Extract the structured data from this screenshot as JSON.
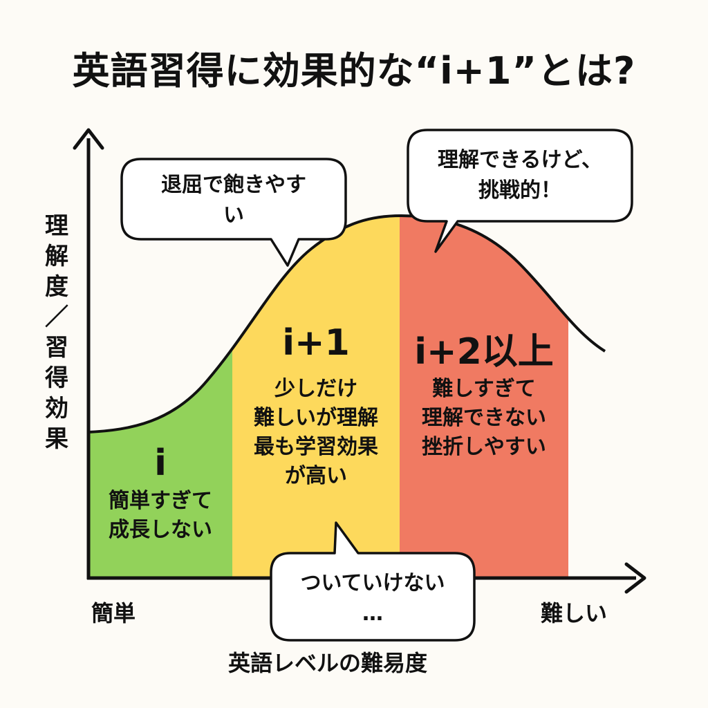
{
  "title": "英語習得に効果的な“i+1”とは?",
  "axes": {
    "y_label_chars": [
      "理",
      "解",
      "度",
      "／",
      "習",
      "得",
      "効",
      "果"
    ],
    "x_label": "英語レベルの難易度",
    "x_min_label": "簡単",
    "x_max_label": "難しい"
  },
  "zones": [
    {
      "title": "i",
      "desc": [
        "簡単すぎて",
        "成長しない"
      ],
      "color": "#92d25a"
    },
    {
      "title": "i+1",
      "desc": [
        "少しだけ",
        "難しいが理解",
        "最も学習効果",
        "が高い"
      ],
      "color": "#fdd95c"
    },
    {
      "title": "i+2以上",
      "desc": [
        "難しすぎて",
        "理解できない",
        "挫折しやすい"
      ],
      "color": "#f07a62"
    }
  ],
  "bubbles": {
    "boring": {
      "lines": [
        "退屈で飽きやす",
        "い"
      ]
    },
    "challenging": {
      "lines": [
        "理解できるけど、",
        "挑戦的！"
      ]
    },
    "cant_keep_up": {
      "lines": [
        "ついていけない",
        "…"
      ]
    }
  }
}
